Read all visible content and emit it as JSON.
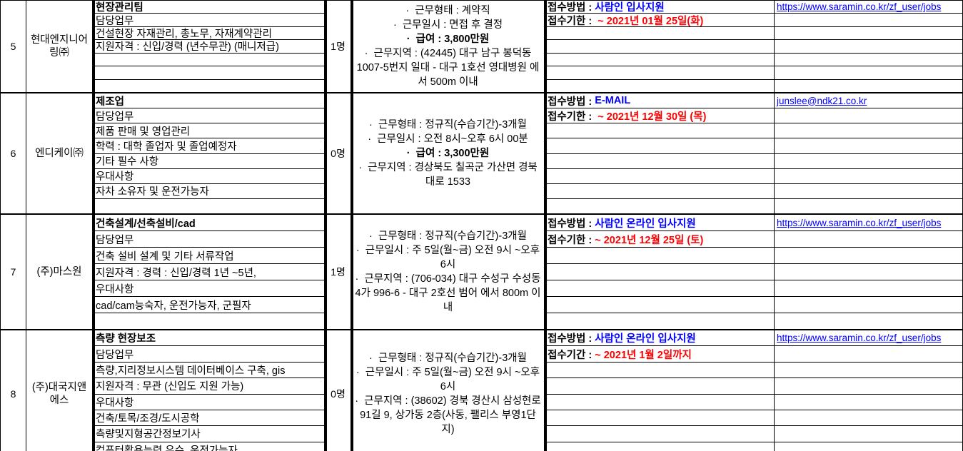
{
  "colors": {
    "hyperlink": "#0000ff",
    "method_value": "#0000ff",
    "deadline_value": "#ff0000",
    "border": "#000000"
  },
  "table": {
    "groups": [
      {
        "row_no": "5",
        "company": "현대엔지니어링㈜",
        "headcount": "1명",
        "details": [
          "현장관리팀",
          "담당업무",
          "건설현장 자재관리, 총노무, 자재계약관리",
          "지원자격 : 신입/경력 (년수무관) (매니저급)",
          "",
          "",
          ""
        ],
        "conditions": [
          {
            "text": "·  근무형태 : 계약직",
            "bold": false
          },
          {
            "text": "·  근무일시 : 면접 후 결정",
            "bold": false
          },
          {
            "text": "·  급여 : 3,800만원",
            "bold": true
          },
          {
            "text": "·  근무지역 : (42445) 대구 남구 봉덕동 1007-5번지 일대 - 대구 1호선 영대병원 에서 500m 이내",
            "bold": false
          }
        ],
        "apply_method_label": "접수방법 : ",
        "apply_method": "사람인 입사지원",
        "deadline_label": "접수기한 :  ",
        "deadline": "~ 2021년 01월 25일(화)",
        "link": "https://www.saramin.co.kr/zf_user/jobs"
      },
      {
        "row_no": "6",
        "company": "엔디케이㈜",
        "headcount": "0명",
        "details": [
          "제조업",
          "담당업무",
          "제품 판매 및 영업관리",
          "학력 : 대학 졸업자 및 졸업예정자",
          "기타 필수 사항",
          "우대사항",
          "자차 소유자 및 운전가능자",
          ""
        ],
        "conditions": [
          {
            "text": "·  근무형태 : 정규직(수습기간)-3개월",
            "bold": false
          },
          {
            "text": "·  근무일시 : 오전 8시~오후 6시 00분",
            "bold": false
          },
          {
            "text": "·  급여 : 3,300만원",
            "bold": true
          },
          {
            "text": "·  근무지역 : 경상북도 칠곡군 가산면 경북대로 1533",
            "bold": false
          }
        ],
        "apply_method_label": "접수방법 : ",
        "apply_method": "E-MAIL",
        "deadline_label": "접수기한 :  ",
        "deadline": "~ 2021년 12월 30일 (목)",
        "link": "junslee@ndk21.co.kr"
      },
      {
        "row_no": "7",
        "company": "(주)마스원",
        "headcount": "1명",
        "details": [
          "건축설계/선축설비/cad",
          "담당업무",
          "건축 설비 설계 및 기타 서류작업",
          "지원자격 : 경력 : 신입/경력 1년 ~5년,",
          "우대사항",
          "cad/cam능숙자, 운전가능자, 군필자",
          ""
        ],
        "conditions": [
          {
            "text": "·  근무형태 : 정규직(수습기간)-3개월",
            "bold": false
          },
          {
            "text": "·  근무일시 : 주 5일(월~금) 오전 9시 ~오후 6시",
            "bold": false
          },
          {
            "text": "·  근무지역 : (706-034) 대구 수성구 수성동4가 996-6 - 대구 2호선 범어 에서 800m 이내",
            "bold": false
          }
        ],
        "apply_method_label": "접수방법 : ",
        "apply_method": "사람인 온라인 입사지원",
        "deadline_label": "접수기한 : ",
        "deadline": "~ 2021년 12월 25일 (토)",
        "link": "https://www.saramin.co.kr/zf_user/jobs"
      },
      {
        "row_no": "8",
        "company": "(주)대국지앤에스",
        "headcount": "0명",
        "details": [
          "측량 현장보조",
          "담당업무",
          "측량,지리정보시스템 데이터베이스 구축, gis",
          "지원자격 : 무관 (신입도 지원 가능)",
          "우대사항",
          "건축/토목/조경/도시공학",
          "측량및지형공간정보기사",
          "컴퓨터활용능력 우수, 운전가능자,"
        ],
        "conditions": [
          {
            "text": "·  근무형태 : 정규직(수습기간)-3개월",
            "bold": false
          },
          {
            "text": "·  근무일시 : 주 5일(월~금) 오전 9시 ~오후 6시",
            "bold": false
          },
          {
            "text": "·  근무지역 : (38602) 경북 경산시 삼성현로91길 9, 상가동 2층(사동, 팰리스 부영1단지)",
            "bold": false
          }
        ],
        "apply_method_label": "접수기간 : ",
        "apply_method": "사람인 온라인 입사지원",
        "deadline_label": "접수기간 : ",
        "deadline": "~ 2021년 1월 2일까지",
        "apply_method_label_fix": "접수방법 : ",
        "link": "https://www.saramin.co.kr/zf_user/jobs"
      }
    ]
  }
}
